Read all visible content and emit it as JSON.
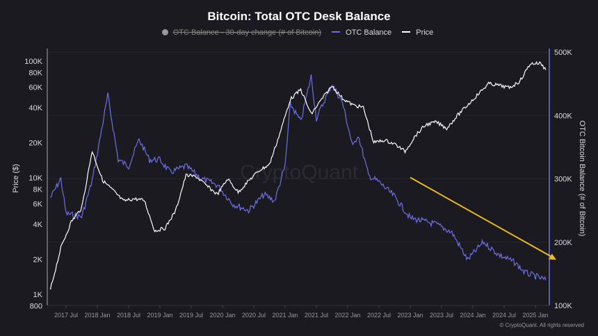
{
  "chart_data": {
    "type": "line",
    "title": "Bitcoin: Total OTC Desk Balance",
    "legend": [
      {
        "name": "OTC Balance - 30-day change (# of Bitcoin)",
        "color": "#999999",
        "hidden": true
      },
      {
        "name": "OTC Balance",
        "color": "#6f6fe8"
      },
      {
        "name": "Price",
        "color": "#ffffff"
      }
    ],
    "legend_placement": "top-center",
    "ylabel_left": "Price ($)",
    "ylabel_right": "OTC Bitcoin Balance (# of Bitcoin)",
    "y_left_scale": "log",
    "y_left_ticks": [
      "800",
      "1K",
      "2K",
      "4K",
      "6K",
      "8K",
      "10K",
      "20K",
      "40K",
      "60K",
      "80K",
      "100K"
    ],
    "y_left_tick_values": [
      800,
      1000,
      2000,
      4000,
      6000,
      8000,
      10000,
      20000,
      40000,
      60000,
      80000,
      100000
    ],
    "y_right_ticks": [
      "100K",
      "200K",
      "300K",
      "400K",
      "500K"
    ],
    "y_right_tick_values": [
      100000,
      200000,
      300000,
      400000,
      500000
    ],
    "x_ticks": [
      "2017 Jul",
      "2018 Jan",
      "2018 Jul",
      "2019 Jan",
      "2019 Jul",
      "2020 Jan",
      "2020 Jul",
      "2021 Jan",
      "2021 Jul",
      "2022 Jan",
      "2022 Jul",
      "2023 Jan",
      "2023 Jul",
      "2024 Jan",
      "2024 Jul",
      "2025 Jan"
    ],
    "x_range": [
      "2017-04",
      "2025-03"
    ],
    "grid": "horizontal",
    "series": [
      {
        "name": "Price",
        "dates": [
          "2017-04",
          "2017-06",
          "2017-08",
          "2017-10",
          "2017-12",
          "2018-02",
          "2018-04",
          "2018-06",
          "2018-08",
          "2018-10",
          "2018-12",
          "2019-02",
          "2019-04",
          "2019-06",
          "2019-08",
          "2019-10",
          "2019-12",
          "2020-02",
          "2020-04",
          "2020-06",
          "2020-08",
          "2020-10",
          "2020-12",
          "2021-02",
          "2021-04",
          "2021-06",
          "2021-08",
          "2021-10",
          "2021-12",
          "2022-02",
          "2022-04",
          "2022-06",
          "2022-08",
          "2022-10",
          "2022-12",
          "2023-02",
          "2023-04",
          "2023-06",
          "2023-08",
          "2023-10",
          "2023-12",
          "2024-02",
          "2024-04",
          "2024-06",
          "2024-08",
          "2024-10",
          "2024-12",
          "2025-02",
          "2025-03"
        ],
        "values": [
          1100,
          2500,
          4200,
          5500,
          17000,
          9500,
          7800,
          6300,
          6600,
          6400,
          3500,
          3700,
          5200,
          10500,
          10200,
          8500,
          7200,
          9800,
          7500,
          9400,
          11500,
          13000,
          24000,
          47000,
          57000,
          35000,
          47000,
          61000,
          48000,
          42000,
          40000,
          20000,
          21000,
          19500,
          16800,
          23000,
          28500,
          30000,
          26500,
          34000,
          42000,
          52000,
          64000,
          62000,
          59000,
          67000,
          95000,
          96000,
          84000
        ]
      },
      {
        "name": "OTC Balance",
        "dates": [
          "2017-04",
          "2017-06",
          "2017-07",
          "2017-10",
          "2017-12",
          "2018-01",
          "2018-03",
          "2018-05",
          "2018-07",
          "2018-09",
          "2018-11",
          "2019-01",
          "2019-03",
          "2019-06",
          "2019-09",
          "2019-12",
          "2020-03",
          "2020-06",
          "2020-09",
          "2020-11",
          "2021-01",
          "2021-02",
          "2021-04",
          "2021-06",
          "2021-07",
          "2021-10",
          "2021-12",
          "2022-02",
          "2022-03",
          "2022-05",
          "2022-07",
          "2022-10",
          "2023-01",
          "2023-06",
          "2023-09",
          "2023-12",
          "2024-03",
          "2024-06",
          "2024-09",
          "2024-11",
          "2025-02",
          "2025-03"
        ],
        "values": [
          270000,
          300000,
          245000,
          240000,
          297000,
          340000,
          432000,
          330000,
          320000,
          362000,
          330000,
          330000,
          310000,
          320000,
          300000,
          290000,
          260000,
          250000,
          275000,
          265000,
          320000,
          418000,
          390000,
          462000,
          395000,
          450000,
          420000,
          350000,
          370000,
          305000,
          295000,
          272000,
          238000,
          228000,
          215000,
          172000,
          200000,
          180000,
          168000,
          152000,
          143000,
          140000
        ]
      }
    ],
    "annotations": [
      {
        "type": "arrow",
        "color": "#e8b923",
        "from": [
          "2023-01",
          302000
        ],
        "to": [
          "2025-05",
          172000
        ]
      }
    ],
    "watermark": "CryptoQuant"
  },
  "footer": {
    "copyright": "© CryptoQuant. All rights reserved"
  }
}
